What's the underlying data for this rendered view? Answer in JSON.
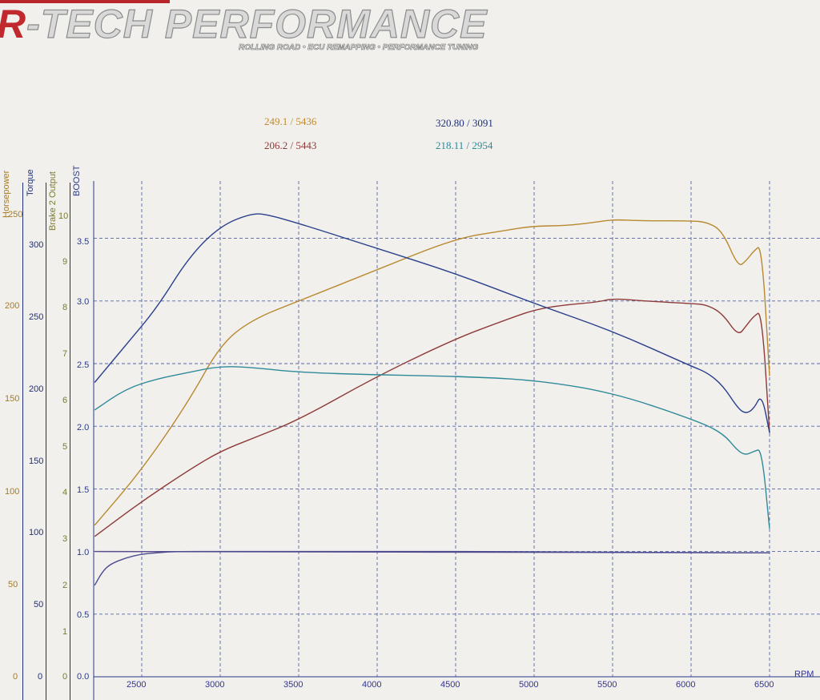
{
  "header": {
    "brand_r": "R",
    "brand_rest": "-TECH PERFORMANCE",
    "tagline": "ROLLING ROAD • ECU REMAPPING • PERFORMANCE TUNING"
  },
  "readouts": [
    {
      "text": "249.1 / 5436",
      "color": "#c18a2e"
    },
    {
      "text": "206.2 / 5443",
      "color": "#8e3a38"
    },
    {
      "text": "320.80 / 3091",
      "color": "#1f2f7a"
    },
    {
      "text": "218.11 / 2954",
      "color": "#2d8a99"
    }
  ],
  "axes": {
    "horsepower": {
      "title": "Horsepower",
      "color": "#a67c1f",
      "ticks": [
        "250",
        "200",
        "150",
        "100",
        "50",
        "0"
      ]
    },
    "torque": {
      "title": "Torque",
      "color": "#1f2f7a",
      "ticks": [
        "300",
        "250",
        "200",
        "150",
        "100",
        "50",
        "0"
      ]
    },
    "brake": {
      "title": "Brake 2 Output",
      "color": "#7a7a32",
      "ticks": [
        "10",
        "9",
        "8",
        "7",
        "6",
        "5",
        "4",
        "3",
        "2",
        "1",
        "0"
      ]
    },
    "boost": {
      "title": "BOOST",
      "color": "#2a3a8a",
      "ticks": [
        "3.5",
        "3.0",
        "2.5",
        "2.0",
        "1.5",
        "1.0",
        "0.5",
        "0.0"
      ]
    },
    "rpm": {
      "title": "RPM",
      "color": "#33339a",
      "ticks": [
        "2500",
        "3000",
        "3500",
        "4000",
        "4500",
        "5000",
        "5500",
        "6000",
        "6500"
      ]
    }
  },
  "chart_data": {
    "type": "line",
    "title": "",
    "xlabel": "RPM",
    "ylabel": "BOOST",
    "xlim": [
      2200,
      6800
    ],
    "ylim": [
      0,
      4
    ],
    "grid": true,
    "series": [
      {
        "color": "#b8892f",
        "x": [
          2200,
          2500,
          2800,
          3000,
          3200,
          3500,
          4000,
          4500,
          4800,
          5000,
          5200,
          5400,
          5500,
          5700,
          6000,
          6100,
          6200,
          6300,
          6350,
          6400,
          6450,
          6500
        ],
        "values": [
          1.21,
          1.65,
          2.2,
          2.65,
          2.85,
          3.0,
          3.25,
          3.5,
          3.56,
          3.6,
          3.6,
          3.63,
          3.65,
          3.64,
          3.64,
          3.63,
          3.56,
          3.27,
          3.32,
          3.4,
          3.45,
          2.4
        ]
      },
      {
        "color": "#8e3a38",
        "x": [
          2200,
          2500,
          2800,
          3000,
          3200,
          3500,
          4000,
          4500,
          4800,
          5000,
          5200,
          5400,
          5500,
          5700,
          6000,
          6100,
          6200,
          6300,
          6350,
          6400,
          6450,
          6500
        ],
        "values": [
          1.12,
          1.4,
          1.65,
          1.8,
          1.9,
          2.05,
          2.4,
          2.7,
          2.84,
          2.93,
          2.97,
          2.99,
          3.02,
          3.0,
          2.98,
          2.97,
          2.9,
          2.72,
          2.8,
          2.88,
          2.92,
          1.95
        ]
      },
      {
        "color": "#2a3f8c",
        "x": [
          2200,
          2400,
          2600,
          2800,
          3000,
          3200,
          3300,
          3500,
          4000,
          4500,
          5000,
          5500,
          6000,
          6100,
          6200,
          6300,
          6350,
          6400,
          6450,
          6500
        ],
        "values": [
          2.35,
          2.65,
          2.95,
          3.35,
          3.6,
          3.7,
          3.69,
          3.62,
          3.42,
          3.22,
          2.98,
          2.76,
          2.48,
          2.43,
          2.33,
          2.14,
          2.1,
          2.14,
          2.26,
          1.95
        ]
      },
      {
        "color": "#2f8a9a",
        "x": [
          2200,
          2400,
          2600,
          2800,
          3000,
          3200,
          3500,
          4000,
          4500,
          5000,
          5500,
          6000,
          6200,
          6300,
          6350,
          6400,
          6450,
          6500
        ],
        "values": [
          2.13,
          2.3,
          2.38,
          2.43,
          2.48,
          2.47,
          2.43,
          2.41,
          2.4,
          2.37,
          2.27,
          2.06,
          1.95,
          1.8,
          1.77,
          1.8,
          1.82,
          1.18
        ]
      },
      {
        "color": "#5a4a8e",
        "x": [
          2200,
          6500
        ],
        "values": [
          1.0,
          0.99
        ]
      },
      {
        "color": "#4a4a90",
        "x": [
          2200,
          2250,
          2300,
          2400,
          2500,
          2600,
          2700,
          3000,
          4000,
          5000,
          6000,
          6500
        ],
        "values": [
          0.73,
          0.84,
          0.9,
          0.95,
          0.98,
          0.99,
          1.0,
          1.0,
          1.0,
          1.0,
          0.99,
          0.99
        ]
      }
    ]
  }
}
